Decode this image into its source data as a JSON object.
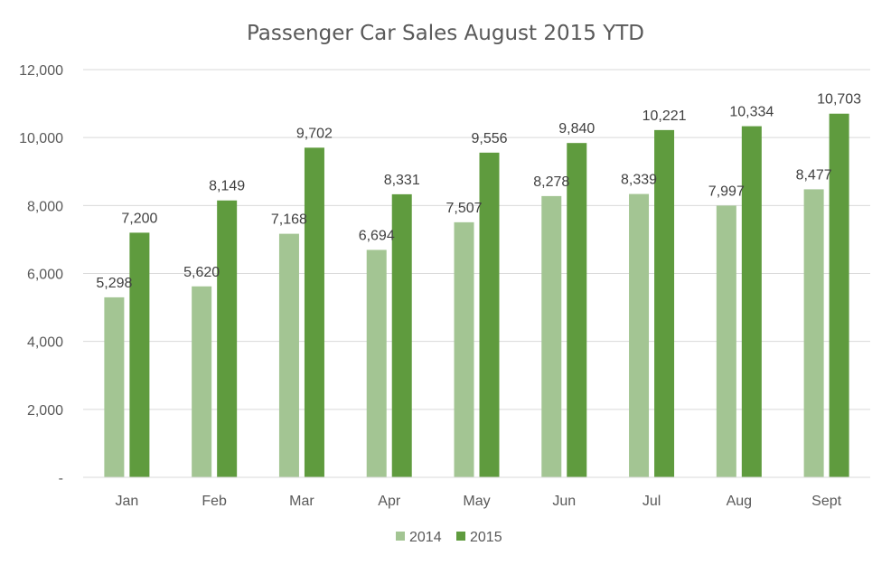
{
  "chart_data": {
    "type": "bar",
    "title": "Passenger Car Sales August 2015 YTD",
    "categories": [
      "Jan",
      "Feb",
      "Mar",
      "Apr",
      "May",
      "Jun",
      "Jul",
      "Aug",
      "Sept"
    ],
    "series": [
      {
        "name": "2014",
        "color": "#a3c593",
        "values": [
          5298,
          5620,
          7168,
          6694,
          7507,
          8278,
          8339,
          7997,
          8477
        ],
        "labels": [
          "5,298",
          "5,620",
          "7,168",
          "6,694",
          "7,507",
          "8,278",
          "8,339",
          "7,997",
          "8,477"
        ]
      },
      {
        "name": "2015",
        "color": "#5f9b3e",
        "values": [
          7200,
          8149,
          9702,
          8331,
          9556,
          9840,
          10221,
          10334,
          10703
        ],
        "labels": [
          "7,200",
          "8,149",
          "9,702",
          "8,331",
          "9,556",
          "9,840",
          "10,221",
          "10,334",
          "10,703"
        ]
      }
    ],
    "ylim": [
      0,
      12000
    ],
    "yticks": [
      0,
      2000,
      4000,
      6000,
      8000,
      10000,
      12000
    ],
    "ytick_labels": [
      "-",
      "2,000",
      "4,000",
      "6,000",
      "8,000",
      "10,000",
      "12,000"
    ],
    "grid": true,
    "legend": "bottom-center"
  }
}
